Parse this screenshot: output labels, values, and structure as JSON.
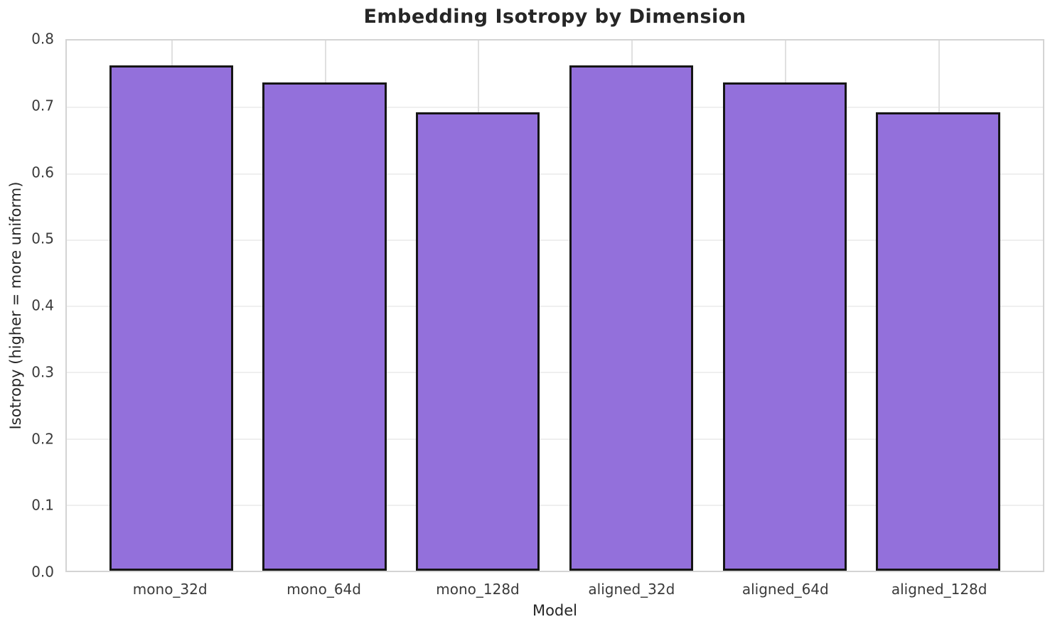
{
  "figure": {
    "title": "Embedding Isotropy by Dimension",
    "xlabel": "Model",
    "ylabel": "Isotropy (higher = more uniform)"
  },
  "chart_data": {
    "type": "bar",
    "title": "Embedding Isotropy by Dimension",
    "xlabel": "Model",
    "ylabel": "Isotropy (higher = more uniform)",
    "categories": [
      "mono_32d",
      "mono_64d",
      "mono_128d",
      "aligned_32d",
      "aligned_64d",
      "aligned_128d"
    ],
    "values": [
      0.763,
      0.737,
      0.692,
      0.763,
      0.737,
      0.692
    ],
    "ylim": [
      0.0,
      0.8
    ],
    "yticks": [
      0.0,
      0.1,
      0.2,
      0.3,
      0.4,
      0.5,
      0.6,
      0.7,
      0.8
    ],
    "ytick_labels": [
      "0.0",
      "0.1",
      "0.2",
      "0.3",
      "0.4",
      "0.5",
      "0.6",
      "0.7",
      "0.8"
    ],
    "grid": true,
    "legend_position": "none",
    "bar_color": "#9370DB",
    "bar_edge_color": "#161616",
    "grid_color": "#efefef",
    "spine_color": "#d4d4d4",
    "title_color": "#262626",
    "tick_color": "#3a3a3a"
  }
}
